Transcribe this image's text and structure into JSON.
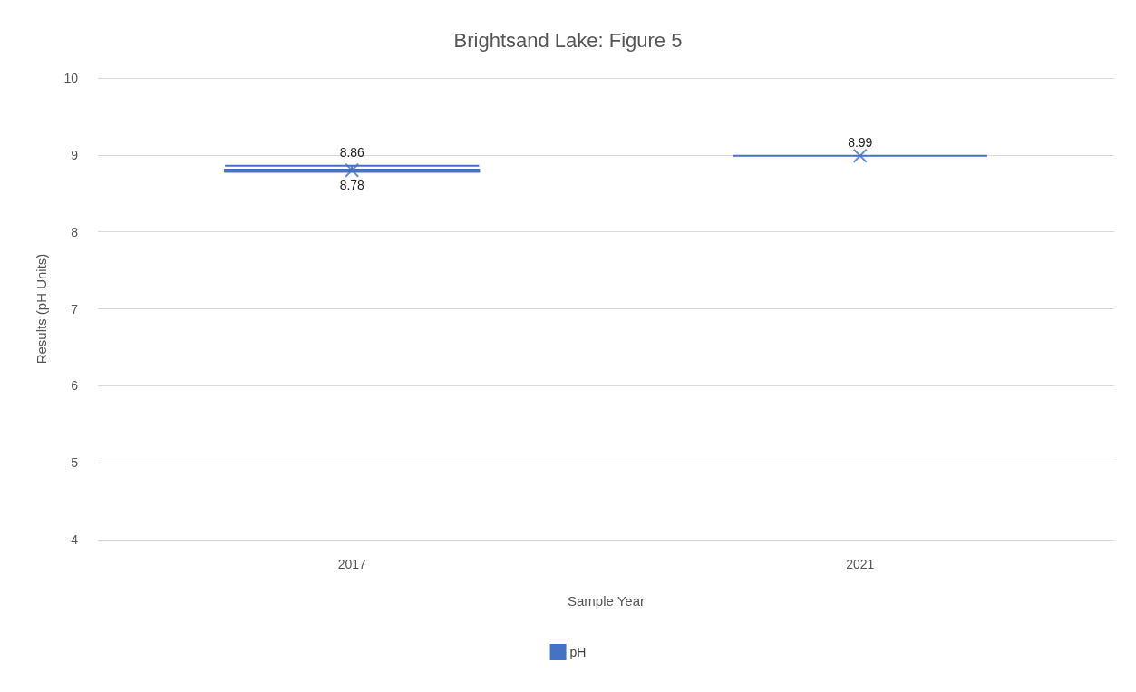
{
  "chart_data": {
    "type": "box",
    "title": "Brightsand Lake: Figure 5",
    "xlabel": "Sample Year",
    "ylabel": "Results (pH Units)",
    "categories": [
      "2017",
      "2021"
    ],
    "series": [
      {
        "name": "pH",
        "color": "#4472c4",
        "boxes": [
          {
            "low": 8.78,
            "q1": 8.78,
            "median": 8.8,
            "q3": 8.81,
            "high": 8.86,
            "mean": 8.8
          },
          {
            "low": 8.99,
            "q1": 8.99,
            "median": 8.99,
            "q3": 8.99,
            "high": 8.99,
            "mean": 8.99
          }
        ]
      }
    ],
    "annotations": [
      {
        "text": "8.86",
        "x": "2017",
        "y": 8.86
      },
      {
        "text": "8.78",
        "x": "2017",
        "y": 8.78
      },
      {
        "text": "8.99",
        "x": "2021",
        "y": 8.99
      }
    ],
    "ylim": [
      4,
      10
    ],
    "yticks": [
      4,
      5,
      6,
      7,
      8,
      9,
      10
    ],
    "grid": "y",
    "legend": "bottom"
  }
}
